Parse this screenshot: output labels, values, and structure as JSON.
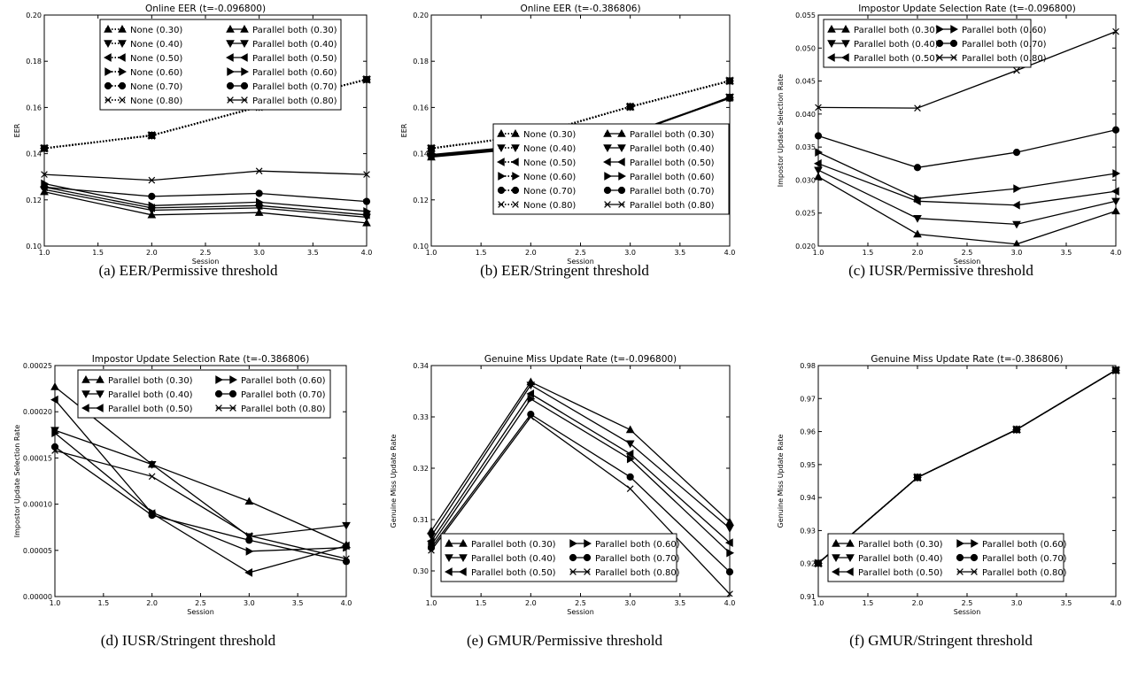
{
  "chart_data": [
    {
      "type": "line",
      "title": "Online EER (t=-0.096800)",
      "xlabel": "Session",
      "ylabel": "EER",
      "caption": "(a) EER/Permissive threshold",
      "xlim": [
        1.0,
        4.0
      ],
      "ylim": [
        0.1,
        0.2
      ],
      "xticks": [
        "1.0",
        "1.5",
        "2.0",
        "2.5",
        "3.0",
        "3.5",
        "4.0"
      ],
      "yticks": [
        "0.10",
        "0.12",
        "0.14",
        "0.16",
        "0.18",
        "0.20"
      ],
      "legend_position": "top-right",
      "legend_cols": 2,
      "x": [
        1,
        2,
        3,
        4
      ],
      "series": [
        {
          "name": "None (0.30)",
          "marker": "triangle-up",
          "dotted": true,
          "values": [
            0.1423,
            0.1479,
            0.1603,
            0.1721
          ]
        },
        {
          "name": "None (0.40)",
          "marker": "triangle-down",
          "dotted": true,
          "values": [
            0.1423,
            0.1479,
            0.1603,
            0.1721
          ]
        },
        {
          "name": "None (0.50)",
          "marker": "triangle-left",
          "dotted": true,
          "values": [
            0.1423,
            0.1479,
            0.1603,
            0.1721
          ]
        },
        {
          "name": "None (0.60)",
          "marker": "triangle-right",
          "dotted": true,
          "values": [
            0.1423,
            0.1479,
            0.1603,
            0.1721
          ]
        },
        {
          "name": "None (0.70)",
          "marker": "circle",
          "dotted": true,
          "values": [
            0.1423,
            0.1479,
            0.1603,
            0.1721
          ]
        },
        {
          "name": "None (0.80)",
          "marker": "x",
          "dotted": true,
          "values": [
            0.1423,
            0.1479,
            0.1603,
            0.1721
          ]
        },
        {
          "name": "Parallel both (0.30)",
          "marker": "triangle-up",
          "dotted": false,
          "values": [
            0.1235,
            0.1135,
            0.1145,
            0.11
          ]
        },
        {
          "name": "Parallel both (0.40)",
          "marker": "triangle-down",
          "dotted": false,
          "values": [
            0.1245,
            0.1155,
            0.1165,
            0.1125
          ]
        },
        {
          "name": "Parallel both (0.50)",
          "marker": "triangle-left",
          "dotted": false,
          "values": [
            0.1255,
            0.1165,
            0.1175,
            0.1135
          ]
        },
        {
          "name": "Parallel both (0.60)",
          "marker": "triangle-right",
          "dotted": false,
          "values": [
            0.127,
            0.1175,
            0.119,
            0.115
          ]
        },
        {
          "name": "Parallel both (0.70)",
          "marker": "circle",
          "dotted": false,
          "values": [
            0.1255,
            0.1215,
            0.1228,
            0.1193
          ]
        },
        {
          "name": "Parallel both (0.80)",
          "marker": "x",
          "dotted": false,
          "values": [
            0.131,
            0.1285,
            0.1325,
            0.131
          ]
        }
      ]
    },
    {
      "type": "line",
      "title": "Online EER (t=-0.386806)",
      "xlabel": "Session",
      "ylabel": "EER",
      "caption": "(b) EER/Stringent threshold",
      "xlim": [
        1.0,
        4.0
      ],
      "ylim": [
        0.1,
        0.2
      ],
      "xticks": [
        "1.0",
        "1.5",
        "2.0",
        "2.5",
        "3.0",
        "3.5",
        "4.0"
      ],
      "yticks": [
        "0.10",
        "0.12",
        "0.14",
        "0.16",
        "0.18",
        "0.20"
      ],
      "legend_position": "bottom-right",
      "legend_cols": 2,
      "x": [
        1,
        2,
        3,
        4
      ],
      "series": [
        {
          "name": "None (0.30)",
          "marker": "triangle-up",
          "dotted": true,
          "values": [
            0.1423,
            0.1479,
            0.1603,
            0.1715
          ]
        },
        {
          "name": "None (0.40)",
          "marker": "triangle-down",
          "dotted": true,
          "values": [
            0.1423,
            0.1479,
            0.1603,
            0.1715
          ]
        },
        {
          "name": "None (0.50)",
          "marker": "triangle-left",
          "dotted": true,
          "values": [
            0.1423,
            0.1479,
            0.1603,
            0.1715
          ]
        },
        {
          "name": "None (0.60)",
          "marker": "triangle-right",
          "dotted": true,
          "values": [
            0.1423,
            0.1479,
            0.1603,
            0.1715
          ]
        },
        {
          "name": "None (0.70)",
          "marker": "circle",
          "dotted": true,
          "values": [
            0.1423,
            0.1479,
            0.1603,
            0.1715
          ]
        },
        {
          "name": "None (0.80)",
          "marker": "x",
          "dotted": true,
          "values": [
            0.1423,
            0.1479,
            0.1603,
            0.1715
          ]
        },
        {
          "name": "Parallel both (0.30)",
          "marker": "triangle-up",
          "dotted": false,
          "values": [
            0.1385,
            0.1425,
            0.1485,
            0.1645
          ]
        },
        {
          "name": "Parallel both (0.40)",
          "marker": "triangle-down",
          "dotted": false,
          "values": [
            0.1388,
            0.1428,
            0.1485,
            0.1645
          ]
        },
        {
          "name": "Parallel both (0.50)",
          "marker": "triangle-left",
          "dotted": false,
          "values": [
            0.139,
            0.143,
            0.1488,
            0.1643
          ]
        },
        {
          "name": "Parallel both (0.60)",
          "marker": "triangle-right",
          "dotted": false,
          "values": [
            0.1392,
            0.1432,
            0.149,
            0.1643
          ]
        },
        {
          "name": "Parallel both (0.70)",
          "marker": "circle",
          "dotted": false,
          "values": [
            0.1394,
            0.1434,
            0.1488,
            0.164
          ]
        },
        {
          "name": "Parallel both (0.80)",
          "marker": "x",
          "dotted": false,
          "values": [
            0.1396,
            0.1436,
            0.1486,
            0.164
          ]
        }
      ]
    },
    {
      "type": "line",
      "title": "Impostor Update Selection Rate (t=-0.096800)",
      "xlabel": "Session",
      "ylabel": "Impostor Update Selection Rate",
      "caption": "(c) IUSR/Permissive threshold",
      "xlim": [
        1.0,
        4.0
      ],
      "ylim": [
        0.02,
        0.055
      ],
      "xticks": [
        "1.0",
        "1.5",
        "2.0",
        "2.5",
        "3.0",
        "3.5",
        "4.0"
      ],
      "yticks": [
        "0.020",
        "0.025",
        "0.030",
        "0.035",
        "0.040",
        "0.045",
        "0.050",
        "0.055"
      ],
      "legend_position": "top-left",
      "legend_cols": 2,
      "x": [
        1,
        2,
        3,
        4
      ],
      "series": [
        {
          "name": "Parallel both (0.30)",
          "marker": "triangle-up",
          "dotted": false,
          "values": [
            0.0305,
            0.0218,
            0.0203,
            0.0253
          ]
        },
        {
          "name": "Parallel both (0.40)",
          "marker": "triangle-down",
          "dotted": false,
          "values": [
            0.0315,
            0.0242,
            0.0233,
            0.0268
          ]
        },
        {
          "name": "Parallel both (0.50)",
          "marker": "triangle-left",
          "dotted": false,
          "values": [
            0.0325,
            0.0268,
            0.0262,
            0.0283
          ]
        },
        {
          "name": "Parallel both (0.60)",
          "marker": "triangle-right",
          "dotted": false,
          "values": [
            0.0342,
            0.0272,
            0.0287,
            0.031
          ]
        },
        {
          "name": "Parallel both (0.70)",
          "marker": "circle",
          "dotted": false,
          "values": [
            0.0367,
            0.0319,
            0.0342,
            0.0376
          ]
        },
        {
          "name": "Parallel both (0.80)",
          "marker": "x",
          "dotted": false,
          "values": [
            0.041,
            0.0409,
            0.0466,
            0.0525
          ]
        }
      ]
    },
    {
      "type": "line",
      "title": "Impostor Update Selection Rate (t=-0.386806)",
      "xlabel": "Session",
      "ylabel": "Impostor Update Selection Rate",
      "caption": "(d) IUSR/Stringent threshold",
      "xlim": [
        1.0,
        4.0
      ],
      "ylim": [
        0.0,
        0.00025
      ],
      "xticks": [
        "1.0",
        "1.5",
        "2.0",
        "2.5",
        "3.0",
        "3.5",
        "4.0"
      ],
      "yticks": [
        "0.00000",
        "0.00005",
        "0.00010",
        "0.00015",
        "0.00020",
        "0.00025"
      ],
      "legend_position": "top-right",
      "legend_cols": 2,
      "x": [
        1,
        2,
        3,
        4
      ],
      "series": [
        {
          "name": "Parallel both (0.30)",
          "marker": "triangle-up",
          "dotted": false,
          "values": [
            0.000227,
            0.000143,
            0.000103,
            5.6e-05
          ]
        },
        {
          "name": "Parallel both (0.40)",
          "marker": "triangle-down",
          "dotted": false,
          "values": [
            0.00018,
            0.000143,
            6.5e-05,
            7.7e-05
          ]
        },
        {
          "name": "Parallel both (0.50)",
          "marker": "triangle-left",
          "dotted": false,
          "values": [
            0.000213,
            9e-05,
            2.6e-05,
            5.5e-05
          ]
        },
        {
          "name": "Parallel both (0.60)",
          "marker": "triangle-right",
          "dotted": false,
          "values": [
            0.000177,
            9.1e-05,
            4.9e-05,
            5.3e-05
          ]
        },
        {
          "name": "Parallel both (0.70)",
          "marker": "circle",
          "dotted": false,
          "values": [
            0.000162,
            8.8e-05,
            6.1e-05,
            3.8e-05
          ]
        },
        {
          "name": "Parallel both (0.80)",
          "marker": "x",
          "dotted": false,
          "values": [
            0.000158,
            0.00013,
            6.6e-05,
            4.1e-05
          ]
        }
      ]
    },
    {
      "type": "line",
      "title": "Genuine Miss Update Rate (t=-0.096800)",
      "xlabel": "Session",
      "ylabel": "Genuine Miss Update Rate",
      "caption": "(e) GMUR/Permissive threshold",
      "xlim": [
        1.0,
        4.0
      ],
      "ylim": [
        0.295,
        0.34
      ],
      "xticks": [
        "1.0",
        "1.5",
        "2.0",
        "2.5",
        "3.0",
        "3.5",
        "4.0"
      ],
      "yticks": [
        "0.30",
        "0.31",
        "0.32",
        "0.33",
        "0.34"
      ],
      "legend_position": "bottom-left",
      "legend_cols": 2,
      "x": [
        1,
        2,
        3,
        4
      ],
      "series": [
        {
          "name": "Parallel both (0.30)",
          "marker": "triangle-up",
          "dotted": false,
          "values": [
            0.3078,
            0.3368,
            0.3275,
            0.3095
          ]
        },
        {
          "name": "Parallel both (0.40)",
          "marker": "triangle-down",
          "dotted": false,
          "values": [
            0.3068,
            0.3362,
            0.3248,
            0.3083
          ]
        },
        {
          "name": "Parallel both (0.50)",
          "marker": "triangle-left",
          "dotted": false,
          "values": [
            0.3058,
            0.3345,
            0.3228,
            0.3055
          ]
        },
        {
          "name": "Parallel both (0.60)",
          "marker": "triangle-right",
          "dotted": false,
          "values": [
            0.305,
            0.3335,
            0.3218,
            0.3035
          ]
        },
        {
          "name": "Parallel both (0.70)",
          "marker": "circle",
          "dotted": false,
          "values": [
            0.3045,
            0.3305,
            0.3183,
            0.2998
          ]
        },
        {
          "name": "Parallel both (0.80)",
          "marker": "x",
          "dotted": false,
          "values": [
            0.304,
            0.33,
            0.316,
            0.2955
          ]
        }
      ]
    },
    {
      "type": "line",
      "title": "Genuine Miss Update Rate (t=-0.386806)",
      "xlabel": "Session",
      "ylabel": "Genuine Miss Update Rate",
      "caption": "(f) GMUR/Stringent threshold",
      "xlim": [
        1.0,
        4.0
      ],
      "ylim": [
        0.91,
        0.98
      ],
      "xticks": [
        "1.0",
        "1.5",
        "2.0",
        "2.5",
        "3.0",
        "3.5",
        "4.0"
      ],
      "yticks": [
        "0.91",
        "0.92",
        "0.93",
        "0.94",
        "0.95",
        "0.96",
        "0.97",
        "0.98"
      ],
      "legend_position": "bottom-right",
      "legend_cols": 2,
      "x": [
        1,
        2,
        3,
        4
      ],
      "series": [
        {
          "name": "Parallel both (0.30)",
          "marker": "triangle-up",
          "dotted": false,
          "values": [
            0.9201,
            0.9461,
            0.9606,
            0.9786
          ]
        },
        {
          "name": "Parallel both (0.40)",
          "marker": "triangle-down",
          "dotted": false,
          "values": [
            0.9201,
            0.9461,
            0.9606,
            0.9786
          ]
        },
        {
          "name": "Parallel both (0.50)",
          "marker": "triangle-left",
          "dotted": false,
          "values": [
            0.9201,
            0.9461,
            0.9606,
            0.9786
          ]
        },
        {
          "name": "Parallel both (0.60)",
          "marker": "triangle-right",
          "dotted": false,
          "values": [
            0.9201,
            0.9461,
            0.9606,
            0.9786
          ]
        },
        {
          "name": "Parallel both (0.70)",
          "marker": "circle",
          "dotted": false,
          "values": [
            0.9201,
            0.9461,
            0.9606,
            0.9786
          ]
        },
        {
          "name": "Parallel both (0.80)",
          "marker": "x",
          "dotted": false,
          "values": [
            0.9201,
            0.9461,
            0.9606,
            0.9786
          ]
        }
      ]
    }
  ]
}
